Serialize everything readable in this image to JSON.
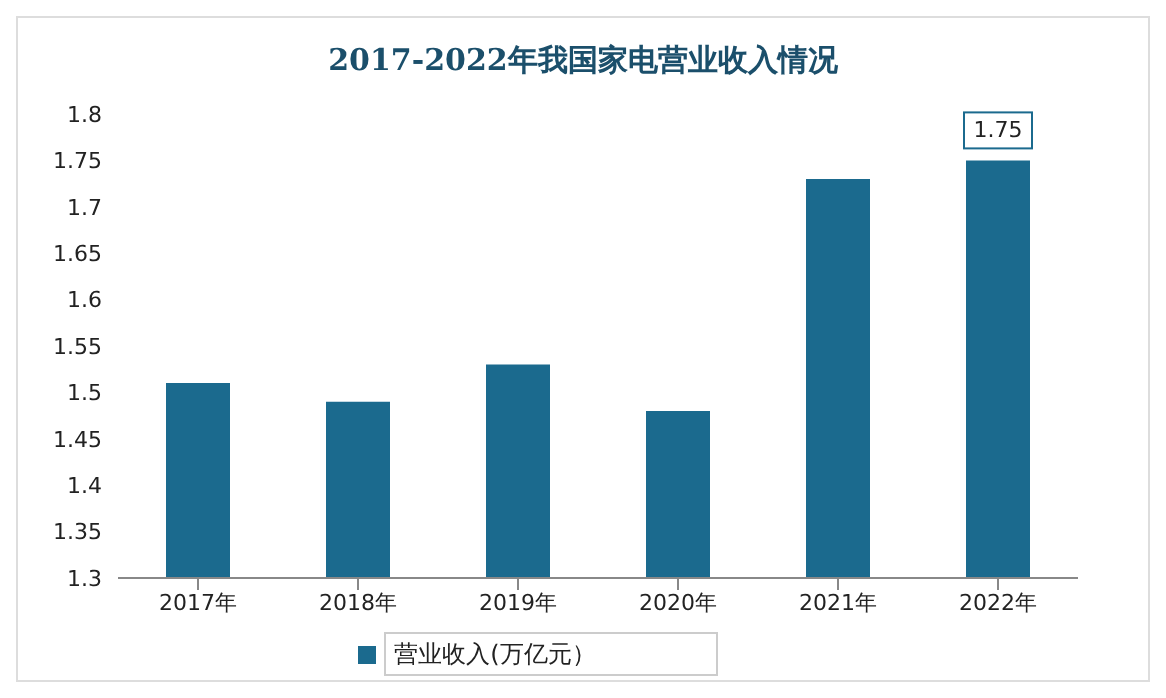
{
  "chart_data": {
    "type": "bar",
    "title": "2017-2022年我国家电营业收入情况",
    "categories": [
      "2017年",
      "2018年",
      "2019年",
      "2020年",
      "2021年",
      "2022年"
    ],
    "series": [
      {
        "name": "营业收入(万亿元）",
        "color": "#1b6a8e",
        "values": [
          1.51,
          1.49,
          1.53,
          1.48,
          1.73,
          1.75
        ],
        "value_labels": [
          null,
          null,
          null,
          null,
          null,
          "1.75"
        ]
      }
    ],
    "ylim": [
      1.3,
      1.8
    ],
    "yticks": [
      1.3,
      1.35,
      1.4,
      1.45,
      1.5,
      1.55,
      1.6,
      1.65,
      1.7,
      1.75,
      1.8
    ],
    "grid": false,
    "legend": "bottom"
  }
}
